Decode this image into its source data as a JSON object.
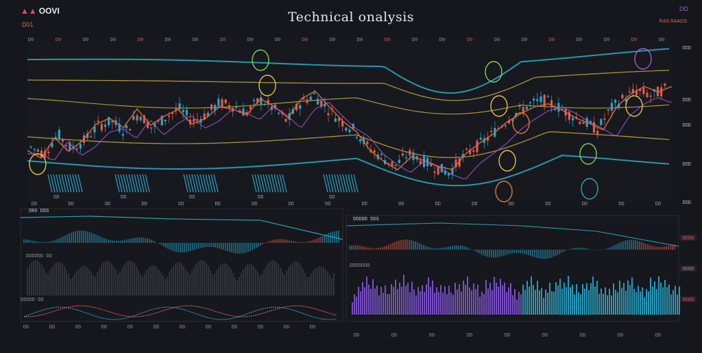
{
  "header": {
    "logo_text": "OOVI",
    "logo_mark": "▲▲",
    "ticker": "D01",
    "title": "Technical onalysis",
    "right_mark": "DD",
    "right_tab": "RAS RAADS"
  },
  "main_chart": {
    "top_labels": [
      "D0",
      "D0",
      "D0",
      "D0",
      "D0",
      "D0",
      "D0",
      "D0",
      "D0",
      "D0",
      "D0",
      "D0",
      "D0",
      "D0",
      "D0",
      "D0",
      "D0",
      "D0",
      "D0",
      "D0",
      "D0",
      "D0",
      "D0",
      "D0"
    ],
    "bottom_labels": [
      "DD",
      "DD",
      "DD",
      "DD",
      "DD",
      "DD",
      "DD",
      "DD",
      "DD",
      "DD",
      "DD",
      "DD",
      "DD",
      "DD",
      "DD",
      "DD",
      "DD",
      "DD"
    ],
    "right_labels": [
      "DDD",
      "DDD",
      "DDD",
      "DDD",
      "DDD"
    ],
    "volume_labels": [
      "DD",
      "DD",
      "DD",
      "DD",
      "DD",
      "DD"
    ]
  },
  "lower_left_panel": {
    "title": "DRS DDS",
    "sub_label": "DDDDDD DD",
    "bottom_labels": [
      "DD",
      "DD",
      "DD",
      "DD",
      "DD",
      "DD",
      "DD",
      "DD",
      "DD",
      "DD",
      "DD",
      "DD"
    ],
    "footer": "DDDDD DD"
  },
  "lower_right_panel": {
    "title": "DDDDD DDS",
    "sub_label": "DDDDDDD",
    "bottom_labels": [
      "DD",
      "DD",
      "DD",
      "DD",
      "DD",
      "DD",
      "DD",
      "DD",
      "DD"
    ],
    "right_labels": [
      "DDDD",
      "DDDD",
      "DDDD"
    ]
  },
  "colors": {
    "background": "#15171c",
    "up": "#2aa3c8",
    "down": "#e05a4a",
    "band_outer": "#2a9fb4",
    "band_inner": "#b79a3c",
    "ma_orange": "#e0703a",
    "ma_purple": "#a55ad0",
    "volume_cyan": "#2bb3d6",
    "osc_purple": "#8a5be0"
  },
  "chart_data": [
    {
      "type": "candlestick",
      "title": "Technical onalysis",
      "series": [
        {
          "values": [
            120,
            112,
            135,
            118,
            128,
            145,
            150,
            138,
            160,
            142,
            155,
            165,
            150,
            158,
            172,
            168,
            160,
            176,
            165,
            150,
            172,
            181,
            165,
            150,
            140,
            120,
            108,
            98,
            112,
            105,
            96,
            90,
            108,
            120,
            132,
            148,
            160,
            170,
            175,
            168,
            158,
            150,
            140,
            165,
            178,
            186,
            180,
            188
          ]
        }
      ]
    },
    {
      "type": "bar",
      "title": "",
      "series": [
        {
          "values": [
            6,
            9,
            7,
            11,
            8,
            12,
            9,
            14,
            10,
            8,
            13,
            9,
            11,
            7,
            12,
            10,
            14,
            9,
            8,
            12,
            10,
            13,
            8,
            11,
            9,
            15,
            10,
            12,
            8,
            14,
            11,
            9,
            13,
            10,
            12,
            8,
            11,
            14,
            9,
            12
          ]
        }
      ]
    }
  ]
}
